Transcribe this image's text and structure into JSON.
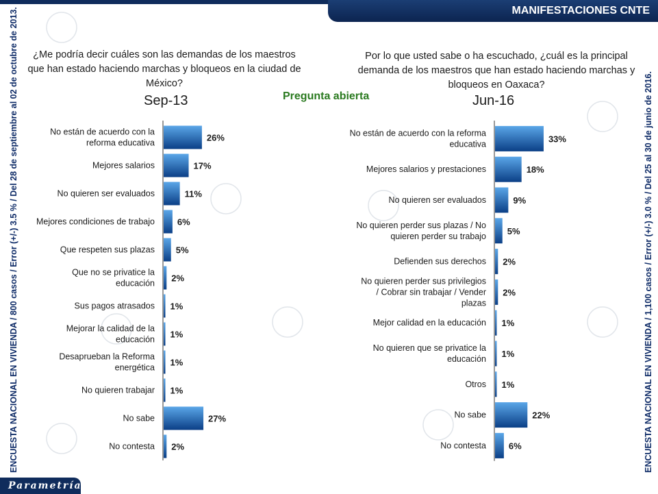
{
  "header": {
    "title": "MANIFESTACIONES CNTE"
  },
  "open_question": "Pregunta abierta",
  "brand": "Parametría",
  "side_left": "ENCUESTA NACIONAL EN VIVIENDA / 800 casos / Error (+/-) 3.5 % / Del 28 de septiembre al 02 de octubre de 2013.",
  "side_right": "ENCUESTA NACIONAL EN VIVIENDA / 1,100 casos / Error (+/-) 3.0 % / Del 25 al 30 de junio de 2016.",
  "colors": {
    "bar_dark": "#0b3f86",
    "bar_light": "#5aa6e8",
    "header": "#0f2c5c",
    "open_question": "#2a7a1f"
  },
  "chart_data": [
    {
      "type": "bar",
      "orientation": "horizontal",
      "question": "¿Me podría decir cuáles son las demandas de los maestros que han estado haciendo marchas y bloqueos en la ciudad de México?",
      "title": "Sep-13",
      "unit": "%",
      "categories": [
        "No están de acuerdo con la reforma educativa",
        "Mejores salarios",
        "No quieren ser evaluados",
        "Mejores condiciones de trabajo",
        "Que respeten sus plazas",
        "Que no se privatice la educación",
        "Sus pagos atrasados",
        "Mejorar la calidad de la educación",
        "Desaprueban la Reforma energética",
        "No quieren trabajar",
        "No sabe",
        "No contesta"
      ],
      "values": [
        26,
        17,
        11,
        6,
        5,
        2,
        1,
        1,
        1,
        1,
        27,
        2
      ],
      "value_labels": [
        "26%",
        "17%",
        "11%",
        "6%",
        "5%",
        "2%",
        "1%",
        "1%",
        "1%",
        "1%",
        "27%",
        "2%"
      ],
      "xlim": [
        0,
        100
      ]
    },
    {
      "type": "bar",
      "orientation": "horizontal",
      "question": "Por lo que usted sabe o ha escuchado, ¿cuál es la principal demanda de los maestros que han estado haciendo marchas y bloqueos en Oaxaca?",
      "title": "Jun-16",
      "unit": "%",
      "categories": [
        "No están de acuerdo con la reforma educativa",
        "Mejores salarios y prestaciones",
        "No quieren ser evaluados",
        "No quieren perder sus plazas / No quieren perder su trabajo",
        "Defienden sus derechos",
        "No quieren perder sus privilegios / Cobrar sin trabajar / Vender plazas",
        "Mejor calidad en la educación",
        "No quieren que se privatice la educación",
        "Otros",
        "No sabe",
        "No contesta"
      ],
      "values": [
        33,
        18,
        9,
        5,
        2,
        2,
        1,
        1,
        1,
        22,
        6
      ],
      "value_labels": [
        "33%",
        "18%",
        "9%",
        "5%",
        "2%",
        "2%",
        "1%",
        "1%",
        "1%",
        "22%",
        "6%"
      ],
      "xlim": [
        0,
        100
      ]
    }
  ]
}
